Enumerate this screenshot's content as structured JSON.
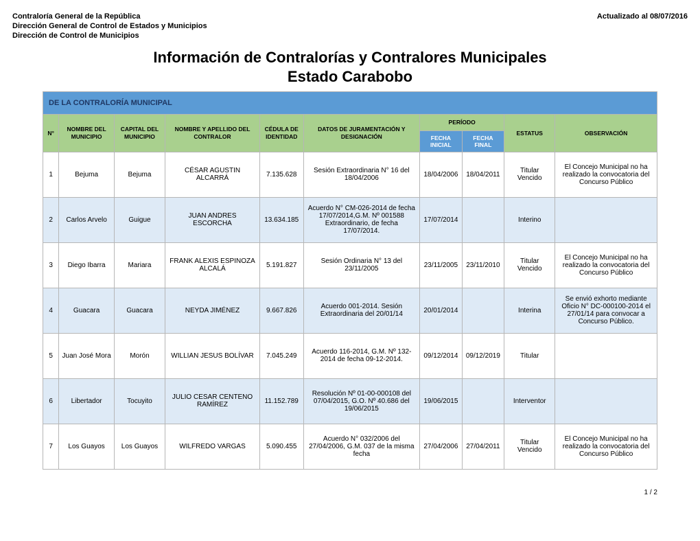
{
  "header": {
    "org1": "Contraloría General de la República",
    "org2": "Dirección General de Control de Estados y Municipios",
    "org3": "Dirección de Control de Municipios",
    "updated": "Actualizado al 08/07/2016"
  },
  "title": {
    "line1": "Información de Contralorías y Contralores Municipales",
    "line2": "Estado Carabobo"
  },
  "section": "DE LA CONTRALORÍA MUNICIPAL",
  "columns": {
    "num": "N°",
    "nombre_mun": "NOMBRE DEL MUNICIPIO",
    "capital_mun": "CAPITAL DEL MUNICIPIO",
    "contralor": "NOMBRE  Y APELLIDO DEL CONTRALOR",
    "cedula": "CÉDULA DE IDENTIDAD",
    "datos": "DATOS DE JURAMENTACIÓN Y DESIGNACIÓN",
    "periodo": "PERÍODO",
    "fecha_ini": "FECHA INICIAL",
    "fecha_fin": "FECHA FINAL",
    "estatus": "ESTATUS",
    "obs": "OBSERVACIÓN"
  },
  "rows": [
    {
      "n": "1",
      "nombre": "Bejuma",
      "capital": "Bejuma",
      "contralor": "CÉSAR AGUSTIN ALCARRÁ",
      "cedula": "7.135.628",
      "datos": "Sesión Extraordinaria N° 16 del 18/04/2006",
      "fi": "18/04/2006",
      "ff": "18/04/2011",
      "estatus": "Titular Vencido",
      "obs": "El Concejo Municipal no ha realizado la convocatoria del Concurso Público"
    },
    {
      "n": "2",
      "nombre": "Carlos Arvelo",
      "capital": "Guigue",
      "contralor": "JUAN ANDRES ESCORCHA",
      "cedula": "13.634.185",
      "datos": "Acuerdo N° CM-026-2014 de fecha 17/07/2014,G.M. Nº 001588 Extraordinario, de fecha 17/07/2014.",
      "fi": "17/07/2014",
      "ff": "",
      "estatus": "Interino",
      "obs": ""
    },
    {
      "n": "3",
      "nombre": "Diego Ibarra",
      "capital": "Mariara",
      "contralor": "FRANK ALEXIS ESPINOZA ALCALÁ",
      "cedula": "5.191.827",
      "datos": "Sesión Ordinaria N° 13 del 23/11/2005",
      "fi": "23/11/2005",
      "ff": "23/11/2010",
      "estatus": "Titular Vencido",
      "obs": "El Concejo Municipal no ha realizado la convocatoria del Concurso Público"
    },
    {
      "n": "4",
      "nombre": "Guacara",
      "capital": "Guacara",
      "contralor": "NEYDA JIMÉNEZ",
      "cedula": "9.667.826",
      "datos": "Acuerdo 001-2014. Sesión Extraordinaria del 20/01/14",
      "fi": "20/01/2014",
      "ff": "",
      "estatus": "Interina",
      "obs": "Se envió exhorto mediante Oficio N° DC-000100-2014 el 27/01/14  para convocar a Concurso Público."
    },
    {
      "n": "5",
      "nombre": "Juan José Mora",
      "capital": "Morón",
      "contralor": "WILLIAN JESUS BOLÍVAR",
      "cedula": "7.045.249",
      "datos": "Acuerdo 116-2014, G.M. Nº 132-2014 de fecha 09-12-2014.",
      "fi": "09/12/2014",
      "ff": "09/12/2019",
      "estatus": "Titular",
      "obs": ""
    },
    {
      "n": "6",
      "nombre": "Libertador",
      "capital": "Tocuyito",
      "contralor": "JULIO CESAR CENTENO RAMÍREZ",
      "cedula": "11.152.789",
      "datos": "Resolución Nº 01-00-000108 del 07/04/2015, G.O. Nº 40.686 del 19/06/2015",
      "fi": "19/06/2015",
      "ff": "",
      "estatus": "Interventor",
      "obs": ""
    },
    {
      "n": "7",
      "nombre": "Los Guayos",
      "capital": "Los Guayos",
      "contralor": "WILFREDO VARGAS",
      "cedula": "5.090.455",
      "datos": "Acuerdo N° 032/2006 del 27/04/2006, G.M. 037 de la misma fecha",
      "fi": "27/04/2006",
      "ff": "27/04/2011",
      "estatus": "Titular Vencido",
      "obs": "El Concejo Municipal no ha realizado la convocatoria del Concurso Público"
    }
  ],
  "pager": "1 /  2",
  "colors": {
    "header_blue": "#5b9bd5",
    "header_green": "#a9d08e",
    "row_even": "#deeaf6",
    "border": "#b6b6b6"
  }
}
